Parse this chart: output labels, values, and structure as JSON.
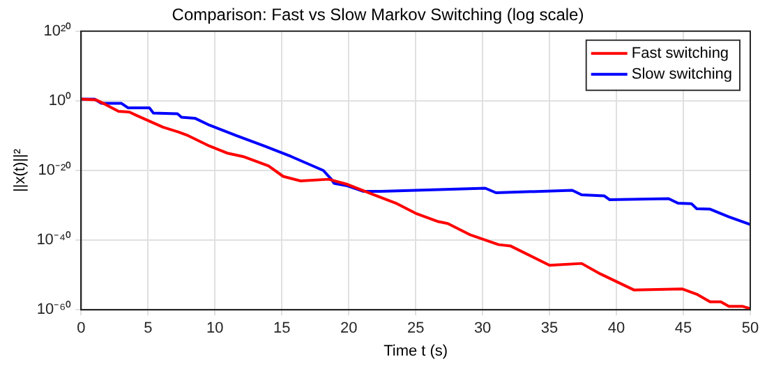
{
  "chart_data": {
    "type": "line",
    "title": "Comparison: Fast vs Slow Markov Switching (log scale)",
    "xlabel": "Time t (s)",
    "ylabel": "||x(t)||²",
    "log": "y",
    "grid": true,
    "legend": "top right",
    "marker": "none",
    "line_style": "solid",
    "xlim": [
      0,
      50
    ],
    "xticks": [
      0,
      5,
      10,
      15,
      20,
      25,
      30,
      35,
      40,
      45,
      50
    ],
    "ylim": [
      1e-60,
      1e+20
    ],
    "yticks": [
      {
        "value": 1e-60,
        "label": "10⁻⁶⁰"
      },
      {
        "value": 1e-40,
        "label": "10⁻⁴⁰"
      },
      {
        "value": 1e-20,
        "label": "10⁻²⁰"
      },
      {
        "value": 1,
        "label": "10⁰"
      },
      {
        "value": 1e+20,
        "label": "10²⁰"
      }
    ],
    "series": [
      {
        "name": "Fast switching",
        "color": "#ff0000",
        "x": [
          0,
          1.1,
          1.8,
          2.8,
          3.6,
          4.2,
          6.1,
          7.3,
          8.0,
          9.6,
          10.9,
          12.1,
          14.0,
          15.1,
          16.4,
          18.5,
          19.9,
          21.9,
          23.6,
          25.0,
          26.7,
          27.4,
          29.1,
          31.2,
          32.1,
          35.0,
          37.4,
          38.8,
          41.3,
          44.9,
          46.0,
          47.0,
          47.8,
          48.4,
          49.4,
          50
        ],
        "values": [
          3.0,
          2.0,
          0.1,
          0.001,
          0.0006,
          5e-05,
          3e-08,
          1e-09,
          1e-10,
          1e-13,
          1e-15,
          1e-16,
          2e-19,
          2e-22,
          1e-23,
          3e-23,
          1e-24,
          1e-27,
          3e-30,
          5e-33,
          2e-35,
          6e-36,
          3e-39,
          5e-42,
          2e-42,
          6e-48,
          2e-47,
          2e-50,
          5e-55,
          1e-54,
          3e-56,
          2e-58,
          2e-58,
          1e-59,
          1e-59,
          2e-60
        ]
      },
      {
        "name": "Slow switching",
        "color": "#0000ff",
        "x": [
          0,
          1.0,
          1.5,
          3.0,
          3.5,
          5.1,
          5.4,
          7.2,
          7.5,
          8.5,
          9.6,
          11.6,
          13.7,
          15.7,
          18.1,
          18.7,
          18.9,
          19.9,
          21.1,
          22.4,
          30.2,
          31.0,
          36.7,
          37.4,
          39.1,
          39.5,
          43.9,
          44.6,
          45.6,
          46.0,
          47.0,
          48.4,
          50
        ],
        "values": [
          3.0,
          3.0,
          0.2,
          0.2,
          0.01,
          0.01,
          0.0003,
          0.0002,
          2e-05,
          1e-05,
          1e-07,
          1e-10,
          1e-13,
          1e-16,
          1e-20,
          3e-23,
          2e-24,
          4e-25,
          1e-26,
          1e-26,
          8e-26,
          4e-27,
          2e-26,
          1e-27,
          5e-28,
          4e-29,
          8e-29,
          4e-30,
          3e-30,
          1e-31,
          8e-32,
          5e-34,
          3e-36
        ]
      }
    ]
  }
}
